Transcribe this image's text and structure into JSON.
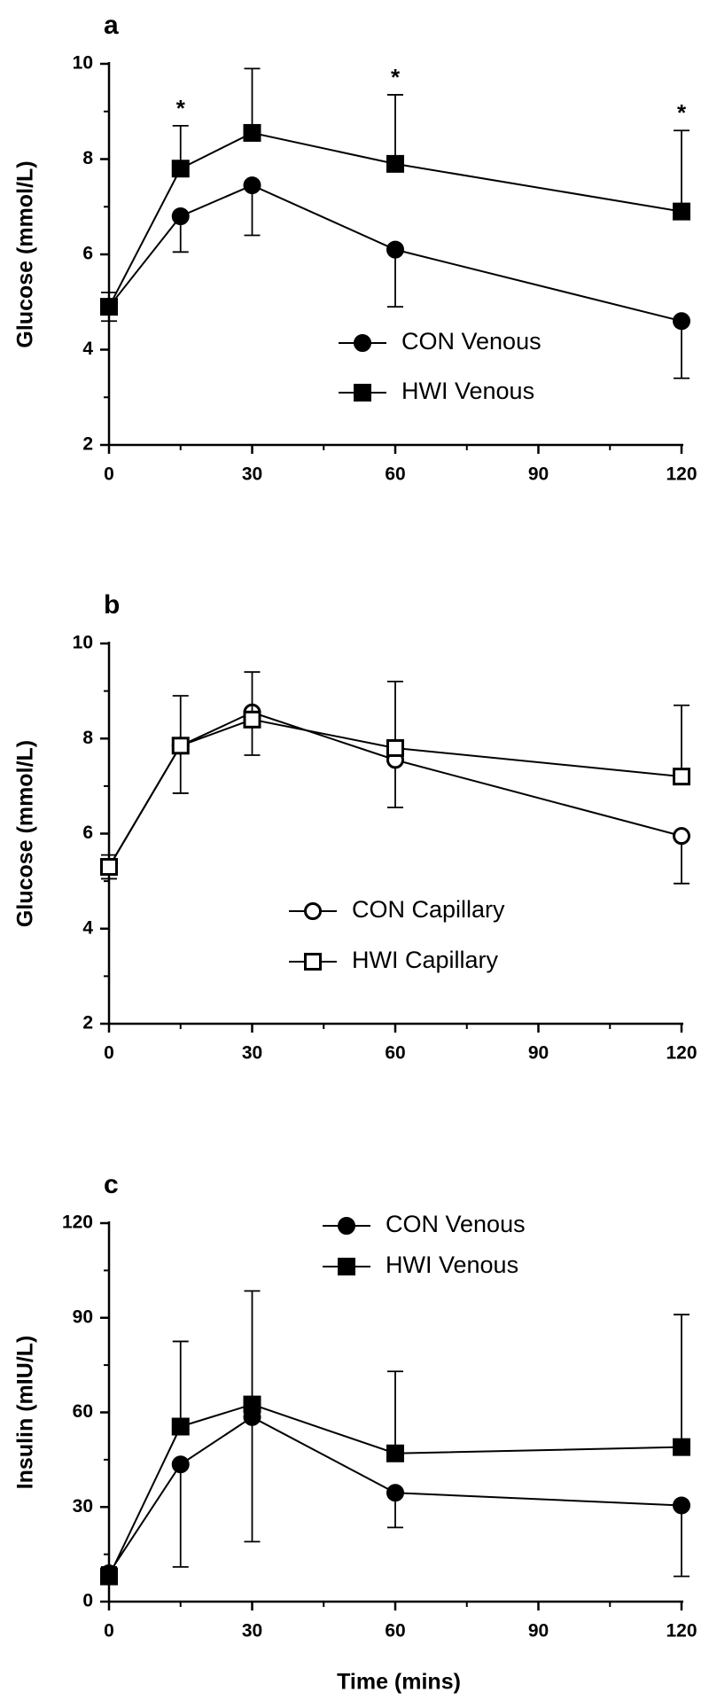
{
  "chart_data": [
    {
      "type": "line",
      "panel_label": "a",
      "ylabel": "Glucose (mmol/L)",
      "xlabel": "",
      "x": [
        0,
        15,
        30,
        60,
        120
      ],
      "xticks": [
        0,
        30,
        60,
        90,
        120
      ],
      "xlim": [
        0,
        120
      ],
      "ylim": [
        2,
        10
      ],
      "yticks": [
        2,
        4,
        6,
        8,
        10
      ],
      "grid": false,
      "legend_position": "lower-right",
      "significance": [
        {
          "x": 15,
          "label": "*"
        },
        {
          "x": 60,
          "label": "*"
        },
        {
          "x": 120,
          "label": "*"
        }
      ],
      "series": [
        {
          "name": "CON Venous",
          "marker": "circle",
          "filled": true,
          "color": "#000000",
          "values": [
            4.9,
            6.8,
            7.45,
            6.1,
            4.6
          ],
          "errors": [
            0.3,
            0.75,
            1.05,
            1.2,
            1.2
          ]
        },
        {
          "name": "HWI Venous",
          "marker": "square",
          "filled": true,
          "color": "#000000",
          "values": [
            4.9,
            7.8,
            8.55,
            7.9,
            6.9
          ],
          "errors": [
            0.3,
            0.9,
            1.35,
            1.45,
            1.7
          ]
        }
      ]
    },
    {
      "type": "line",
      "panel_label": "b",
      "ylabel": "Glucose (mmol/L)",
      "xlabel": "",
      "x": [
        0,
        15,
        30,
        60,
        120
      ],
      "xticks": [
        0,
        30,
        60,
        90,
        120
      ],
      "xlim": [
        0,
        120
      ],
      "ylim": [
        2,
        10
      ],
      "yticks": [
        2,
        4,
        6,
        8,
        10
      ],
      "grid": false,
      "legend_position": "lower-center",
      "significance": [],
      "series": [
        {
          "name": "CON Capillary",
          "marker": "circle",
          "filled": false,
          "color": "#000000",
          "values": [
            5.3,
            7.85,
            8.55,
            7.55,
            5.95
          ],
          "errors": [
            0.25,
            1.0,
            0.9,
            1.0,
            1.0
          ]
        },
        {
          "name": "HWI Capillary",
          "marker": "square",
          "filled": false,
          "color": "#000000",
          "values": [
            5.3,
            7.85,
            8.4,
            7.8,
            7.2
          ],
          "errors": [
            0.25,
            1.05,
            1.0,
            1.4,
            1.5
          ]
        }
      ]
    },
    {
      "type": "line",
      "panel_label": "c",
      "ylabel": "Insulin (mIU/L)",
      "xlabel": "Time (mins)",
      "x": [
        0,
        15,
        30,
        60,
        120
      ],
      "xticks": [
        0,
        30,
        60,
        90,
        120
      ],
      "xlim": [
        0,
        120
      ],
      "ylim": [
        0,
        120
      ],
      "yticks": [
        0,
        30,
        60,
        90,
        120
      ],
      "grid": false,
      "legend_position": "top-center",
      "significance": [],
      "series": [
        {
          "name": "CON Venous",
          "marker": "circle",
          "filled": true,
          "color": "#000000",
          "values": [
            9,
            43.5,
            58.5,
            34.5,
            30.5
          ],
          "errors": [
            3,
            32.5,
            39.5,
            11,
            22.5
          ]
        },
        {
          "name": "HWI Venous",
          "marker": "square",
          "filled": true,
          "color": "#000000",
          "values": [
            8,
            55.5,
            62.5,
            47,
            49
          ],
          "errors": [
            3,
            27,
            36,
            26,
            42
          ]
        }
      ]
    }
  ]
}
